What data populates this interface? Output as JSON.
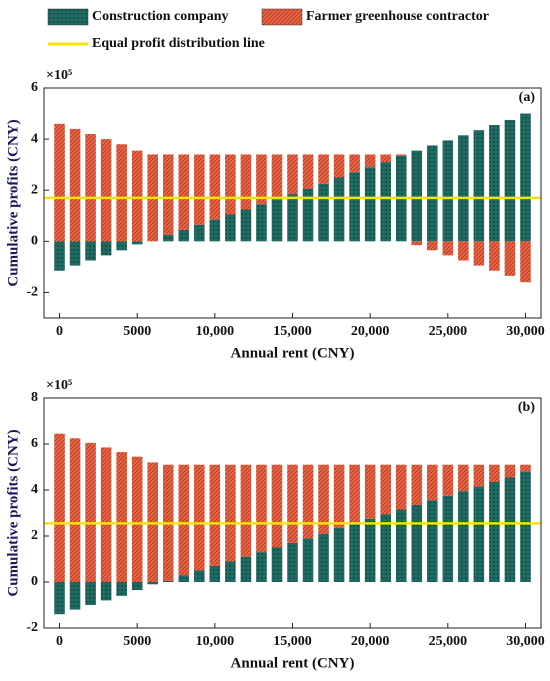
{
  "chart_data": [
    {
      "type": "bar",
      "stacked": true,
      "panel_label": "(a)",
      "y_multiplier": "×10⁵",
      "x_label": "Annual rent (CNY)",
      "y_label": "Cumulative profits (CNY)",
      "x": [
        0,
        1000,
        2000,
        3000,
        4000,
        5000,
        6000,
        7000,
        8000,
        9000,
        10000,
        11000,
        12000,
        13000,
        14000,
        15000,
        16000,
        17000,
        18000,
        19000,
        20000,
        21000,
        22000,
        23000,
        24000,
        25000,
        26000,
        27000,
        28000,
        29000,
        30000
      ],
      "series": [
        {
          "name": "Construction company",
          "color": "#1f6b63",
          "values": [
            -1.15,
            -0.95,
            -0.75,
            -0.55,
            -0.35,
            -0.12,
            0.0,
            0.25,
            0.45,
            0.65,
            0.85,
            1.05,
            1.25,
            1.45,
            1.65,
            1.85,
            2.05,
            2.25,
            2.5,
            2.7,
            2.9,
            3.1,
            3.35,
            3.55,
            3.75,
            3.95,
            4.15,
            4.35,
            4.55,
            4.75,
            5.0
          ]
        },
        {
          "name": "Farmer greenhouse contractor",
          "color": "#e8694a",
          "values": [
            4.6,
            4.4,
            4.2,
            4.0,
            3.8,
            3.55,
            3.4,
            3.15,
            2.95,
            2.75,
            2.55,
            2.35,
            2.15,
            1.95,
            1.75,
            1.55,
            1.35,
            1.15,
            0.9,
            0.7,
            0.5,
            0.3,
            0.05,
            -0.15,
            -0.35,
            -0.55,
            -0.75,
            -0.95,
            -1.15,
            -1.35,
            -1.6
          ]
        }
      ],
      "reference_line": {
        "name": "Equal profit distribution line",
        "value": 1.7,
        "color": "#f2e600"
      },
      "xlim": [
        -1000,
        31000
      ],
      "xticks": [
        0,
        5000,
        {
          "value": 10000,
          "label": "10,000"
        },
        {
          "value": 15000,
          "label": "15,000"
        },
        {
          "value": 20000,
          "label": "20,000"
        },
        {
          "value": 25000,
          "label": "25,000"
        },
        {
          "value": 30000,
          "label": "30,000"
        }
      ],
      "ylim": [
        -3,
        6
      ],
      "yticks": [
        -2,
        0,
        2,
        4,
        6
      ]
    },
    {
      "type": "bar",
      "stacked": true,
      "panel_label": "(b)",
      "y_multiplier": "×10⁵",
      "x_label": "Annual rent (CNY)",
      "y_label": "Cumulative profits (CNY)",
      "x": [
        0,
        1000,
        2000,
        3000,
        4000,
        5000,
        6000,
        7000,
        8000,
        9000,
        10000,
        11000,
        12000,
        13000,
        14000,
        15000,
        16000,
        17000,
        18000,
        19000,
        20000,
        21000,
        22000,
        23000,
        24000,
        25000,
        26000,
        27000,
        28000,
        29000,
        30000
      ],
      "series": [
        {
          "color": "#1f6b63",
          "values": [
            -1.4,
            -1.2,
            -1.0,
            -0.8,
            -0.6,
            -0.35,
            -0.1,
            0.05,
            0.3,
            0.5,
            0.7,
            0.9,
            1.1,
            1.3,
            1.5,
            1.7,
            1.9,
            2.1,
            2.35,
            2.55,
            2.75,
            2.95,
            3.15,
            3.35,
            3.55,
            3.75,
            3.95,
            4.15,
            4.35,
            4.55,
            4.8
          ]
        },
        {
          "color": "#e8694a",
          "values": [
            6.45,
            6.25,
            6.05,
            5.85,
            5.65,
            5.45,
            5.2,
            5.05,
            4.8,
            4.6,
            4.4,
            4.2,
            4.0,
            3.8,
            3.6,
            3.4,
            3.2,
            3.0,
            2.75,
            2.55,
            2.35,
            2.15,
            1.95,
            1.75,
            1.55,
            1.35,
            1.15,
            0.95,
            0.75,
            0.55,
            0.3
          ]
        }
      ],
      "reference_line": {
        "value": 2.55,
        "color": "#f2e600"
      },
      "xlim": [
        -1000,
        31000
      ],
      "xticks": [
        0,
        5000,
        {
          "value": 10000,
          "label": "10,000"
        },
        {
          "value": 15000,
          "label": "15,000"
        },
        {
          "value": 20000,
          "label": "20,000"
        },
        {
          "value": 25000,
          "label": "25,000"
        },
        {
          "value": 30000,
          "label": "30,000"
        }
      ],
      "ylim": [
        -2,
        8
      ],
      "yticks": [
        -2,
        0,
        2,
        4,
        6,
        8
      ]
    }
  ]
}
